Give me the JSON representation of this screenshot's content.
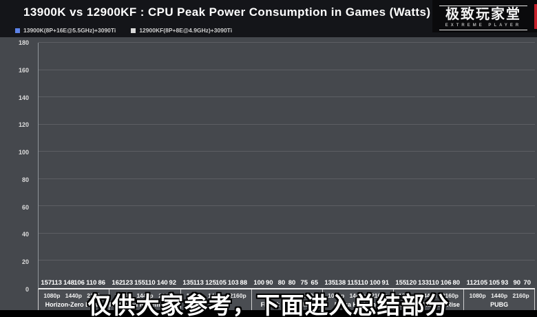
{
  "header": {
    "title": "13900K vs 12900KF : CPU Peak Power Consumption in Games (Watts)"
  },
  "logo": {
    "name_cn": "极致玩家堂",
    "name_en": "EXTREME PLAYER",
    "accent_color": "#c4202b"
  },
  "legend": {
    "series1_label": "13900K(8P+16E@5.5GHz)+3090Ti",
    "series2_label": "12900KF(8P+8E@4.9GHz)+3090Ti",
    "series1_color": "#5c82e8",
    "series2_color": "#d9d9d9"
  },
  "subtitle": "仅供大家参考，下面进入总结部分",
  "chart_data": {
    "type": "bar",
    "title": "13900K vs 12900KF : CPU Peak Power Consumption in Games (Watts)",
    "ylabel": "",
    "xlabel": "",
    "ylim": [
      0,
      180
    ],
    "ytick_step": 20,
    "grid": true,
    "legend_position": "top-left",
    "resolutions": [
      "1080p",
      "1440p",
      "2160p"
    ],
    "series": [
      {
        "name": "13900K(8P+16E@5.5GHz)+3090Ti",
        "color": "#5c82e8"
      },
      {
        "name": "12900KF(8P+8E@4.9GHz)+3090Ti",
        "color": "#d9d9d9"
      }
    ],
    "games": [
      {
        "label": "Horizon-Zero Dawn",
        "values_13900k": [
          157,
          148,
          110
        ],
        "values_12900kf": [
          113,
          106,
          86
        ]
      },
      {
        "label": "Red Dead Redemption 2",
        "values_13900k": [
          162,
          155,
          140
        ],
        "values_12900kf": [
          123,
          110,
          92
        ]
      },
      {
        "label": "",
        "values_13900k": [
          135,
          125,
          103
        ],
        "values_12900kf": [
          113,
          105,
          88
        ]
      },
      {
        "label": "FFXIV: EndWalker",
        "values_13900k": [
          100,
          80,
          75
        ],
        "values_12900kf": [
          90,
          80,
          65
        ]
      },
      {
        "label": "Forza Horizon 5",
        "values_13900k": [
          135,
          115,
          100
        ],
        "values_12900kf": [
          138,
          110,
          91
        ]
      },
      {
        "label": "Monster Hunter: Rise",
        "values_13900k": [
          155,
          133,
          106
        ],
        "values_12900kf": [
          120,
          110,
          80
        ]
      },
      {
        "label": "PUBG",
        "values_13900k": [
          112,
          105,
          90
        ],
        "values_12900kf": [
          105,
          93,
          70
        ]
      }
    ]
  }
}
